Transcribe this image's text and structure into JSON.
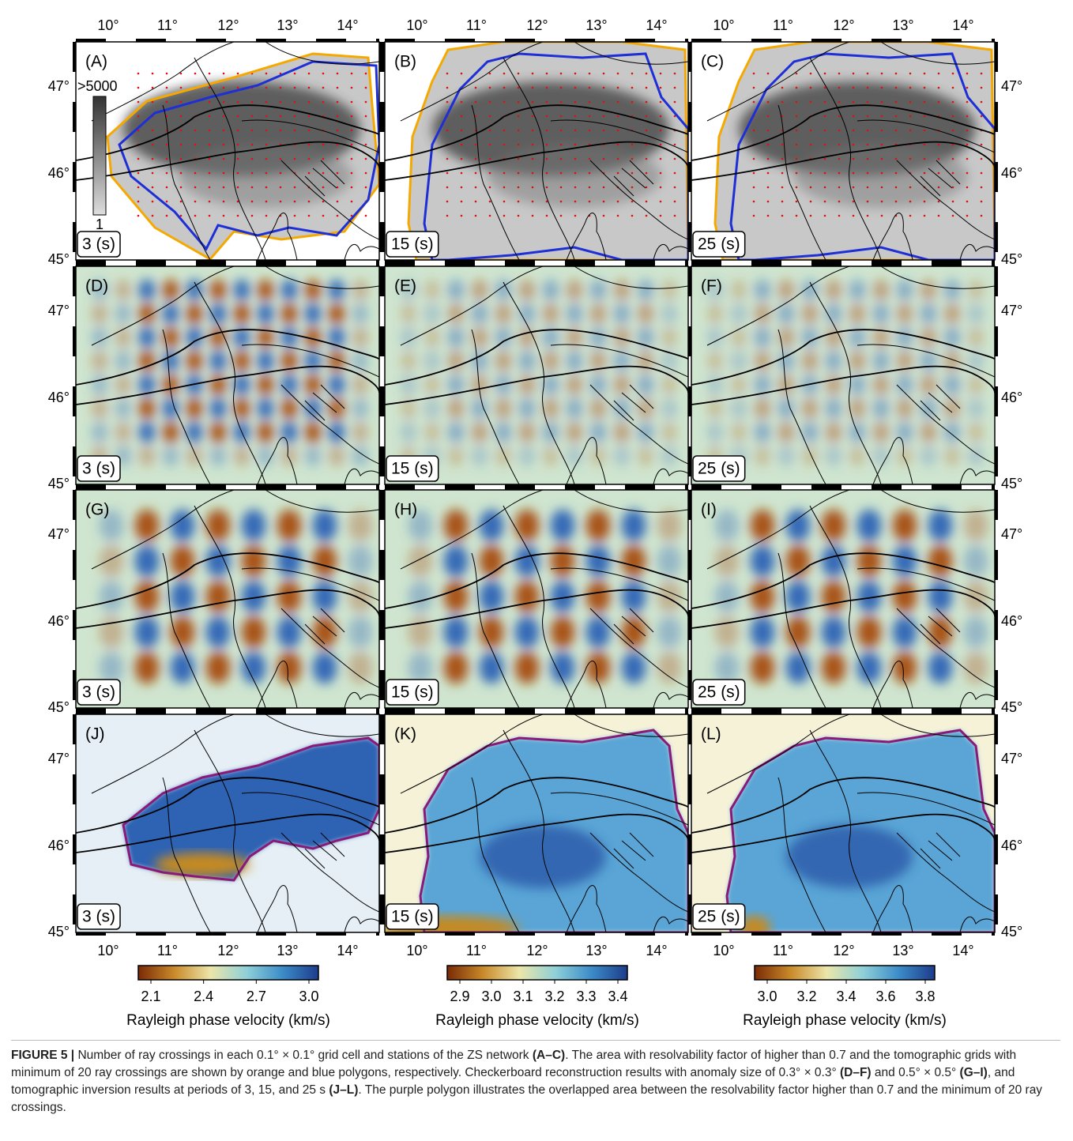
{
  "panels": [
    {
      "label": "(A)",
      "period": "3 (s)"
    },
    {
      "label": "(B)",
      "period": "15 (s)"
    },
    {
      "label": "(C)",
      "period": "25 (s)"
    },
    {
      "label": "(D)",
      "period": "3 (s)"
    },
    {
      "label": "(E)",
      "period": "15 (s)"
    },
    {
      "label": "(F)",
      "period": "25 (s)"
    },
    {
      "label": "(G)",
      "period": "3 (s)"
    },
    {
      "label": "(H)",
      "period": "15 (s)"
    },
    {
      "label": "(I)",
      "period": "25 (s)"
    },
    {
      "label": "(J)",
      "period": "3 (s)"
    },
    {
      "label": "(K)",
      "period": "15 (s)"
    },
    {
      "label": "(L)",
      "period": "25 (s)"
    }
  ],
  "lon_ticks": [
    "10°",
    "11°",
    "12°",
    "13°",
    "14°"
  ],
  "lat_ticks": [
    "47°",
    "46°",
    "45°"
  ],
  "ray_scale": {
    "max": ">5000",
    "min": "1"
  },
  "colorbars": [
    {
      "ticks": [
        "2.1",
        "2.4",
        "2.7",
        "3.0"
      ],
      "title": "Rayleigh phase velocity (km/s)"
    },
    {
      "ticks": [
        "2.9",
        "3.0",
        "3.1",
        "3.2",
        "3.3",
        "3.4"
      ],
      "title": "Rayleigh phase velocity (km/s)"
    },
    {
      "ticks": [
        "3.0",
        "3.2",
        "3.4",
        "3.6",
        "3.8"
      ],
      "title": "Rayleigh phase velocity (km/s)"
    }
  ],
  "caption": {
    "figure": "FIGURE 5 |",
    "segments": [
      {
        "text": " Number of ray crossings in each 0.1° × 0.1° grid cell and stations of the ZS network ",
        "bold": false
      },
      {
        "text": "(A–C)",
        "bold": true
      },
      {
        "text": ". The area with resolvability factor of higher than 0.7 and the tomographic grids with minimum of 20 ray crossings are shown by orange and blue polygons, respectively. Checkerboard reconstruction results with anomaly size of 0.3° × 0.3° ",
        "bold": false
      },
      {
        "text": "(D–F)",
        "bold": true
      },
      {
        "text": " and 0.5° × 0.5° ",
        "bold": false
      },
      {
        "text": "(G–I)",
        "bold": true
      },
      {
        "text": ", and tomographic inversion results at periods of 3, 15, and 25 s ",
        "bold": false
      },
      {
        "text": "(J–L)",
        "bold": true
      },
      {
        "text": ". The purple polygon illustrates the overlapped area between the resolvability factor higher than 0.7 and the minimum of 20 ray crossings.",
        "bold": false
      }
    ]
  }
}
